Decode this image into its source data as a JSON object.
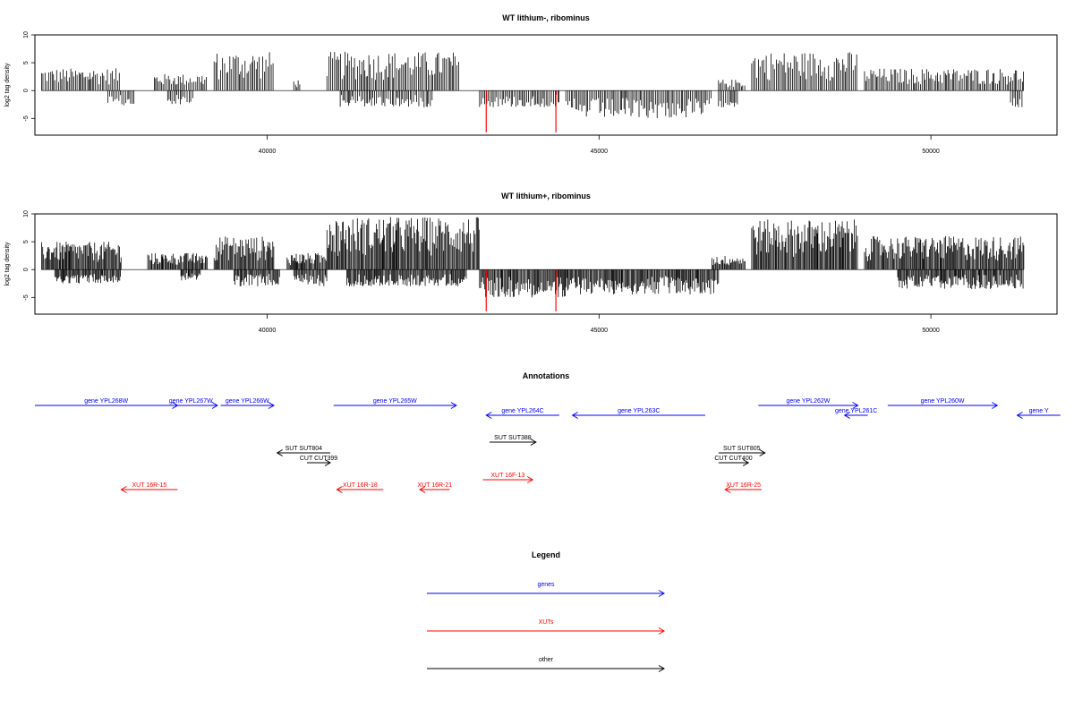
{
  "colors": {
    "gene": "#0000ff",
    "xut": "#ff0000",
    "other": "#000000",
    "frame": "#000000",
    "highlight": "#ff0000"
  },
  "chart_data": [
    {
      "type": "bar",
      "title": "WT lithium-, ribominus",
      "ylabel": "log2 tag density",
      "xlim": [
        36500,
        51900
      ],
      "ylim": [
        -8,
        10
      ],
      "xticks": [
        40000,
        45000,
        50000
      ],
      "yticks": [
        -5,
        0,
        5,
        10
      ],
      "density": 1,
      "segments": [
        {
          "x0": 36600,
          "x1": 37800,
          "ymax": 4,
          "sign": 1
        },
        {
          "x0": 37600,
          "x1": 38000,
          "ymax": 3,
          "sign": -1
        },
        {
          "x0": 38300,
          "x1": 39100,
          "ymax": 3,
          "sign": 1
        },
        {
          "x0": 38500,
          "x1": 38900,
          "ymax": 2.5,
          "sign": -1
        },
        {
          "x0": 39200,
          "x1": 40100,
          "ymax": 7,
          "sign": 1
        },
        {
          "x0": 40400,
          "x1": 40500,
          "ymax": 2,
          "sign": 1
        },
        {
          "x0": 40900,
          "x1": 42900,
          "ymax": 7,
          "sign": 1
        },
        {
          "x0": 41100,
          "x1": 42500,
          "ymax": 3,
          "sign": -1
        },
        {
          "x0": 43200,
          "x1": 44400,
          "ymax": 3,
          "sign": -1
        },
        {
          "x0": 44500,
          "x1": 46700,
          "ymax": 5,
          "sign": -1
        },
        {
          "x0": 46800,
          "x1": 47100,
          "ymax": 3,
          "sign": -1
        },
        {
          "x0": 46800,
          "x1": 47200,
          "ymax": 2,
          "sign": 1
        },
        {
          "x0": 47300,
          "x1": 48900,
          "ymax": 7,
          "sign": 1
        },
        {
          "x0": 49000,
          "x1": 51400,
          "ymax": 4,
          "sign": 1
        },
        {
          "x0": 51200,
          "x1": 51400,
          "ymax": 3,
          "sign": -1
        }
      ],
      "highlights": [
        {
          "x": 43300,
          "value": -7.5
        },
        {
          "x": 44350,
          "value": -7.5
        }
      ]
    },
    {
      "type": "bar",
      "title": "WT lithium+, ribominus",
      "ylabel": "log2 tag density",
      "xlim": [
        36500,
        51900
      ],
      "ylim": [
        -8,
        10
      ],
      "xticks": [
        40000,
        45000,
        50000
      ],
      "yticks": [
        -5,
        0,
        5,
        10
      ],
      "density": 2,
      "segments": [
        {
          "x0": 36600,
          "x1": 37800,
          "ymax": 5,
          "sign": 1
        },
        {
          "x0": 36800,
          "x1": 37800,
          "ymax": 2.5,
          "sign": -1
        },
        {
          "x0": 38200,
          "x1": 39100,
          "ymax": 3,
          "sign": 1
        },
        {
          "x0": 38700,
          "x1": 39000,
          "ymax": 2,
          "sign": -1
        },
        {
          "x0": 39200,
          "x1": 40100,
          "ymax": 6,
          "sign": 1
        },
        {
          "x0": 39500,
          "x1": 40200,
          "ymax": 3,
          "sign": -1
        },
        {
          "x0": 40300,
          "x1": 40900,
          "ymax": 3,
          "sign": 1
        },
        {
          "x0": 40400,
          "x1": 40900,
          "ymax": 3,
          "sign": -1
        },
        {
          "x0": 40900,
          "x1": 43200,
          "ymax": 9.5,
          "sign": 1
        },
        {
          "x0": 41200,
          "x1": 43000,
          "ymax": 3,
          "sign": -1
        },
        {
          "x0": 43200,
          "x1": 44500,
          "ymax": 5,
          "sign": -1
        },
        {
          "x0": 44500,
          "x1": 46800,
          "ymax": 4.5,
          "sign": -1
        },
        {
          "x0": 46700,
          "x1": 47200,
          "ymax": 2.5,
          "sign": 1
        },
        {
          "x0": 47300,
          "x1": 48900,
          "ymax": 9,
          "sign": 1
        },
        {
          "x0": 49000,
          "x1": 51400,
          "ymax": 6,
          "sign": 1
        },
        {
          "x0": 49500,
          "x1": 51400,
          "ymax": 3.5,
          "sign": -1
        }
      ],
      "highlights": [
        {
          "x": 43300,
          "value": -7.5
        },
        {
          "x": 44350,
          "value": -7.5
        }
      ]
    }
  ],
  "annotations": {
    "title": "Annotations",
    "xlim": [
      36500,
      51900
    ],
    "features": [
      {
        "label": "gene YPL268W",
        "type": "gene",
        "start": 36500,
        "end": 38650,
        "dir": "right",
        "row": 0
      },
      {
        "label": "gene YPL267W",
        "type": "gene",
        "start": 38450,
        "end": 39250,
        "dir": "right",
        "row": 0
      },
      {
        "label": "gene YPL266W",
        "type": "gene",
        "start": 39300,
        "end": 40100,
        "dir": "right",
        "row": 0
      },
      {
        "label": "gene YPL265W",
        "type": "gene",
        "start": 41000,
        "end": 42850,
        "dir": "right",
        "row": 0
      },
      {
        "label": "gene YPL264C",
        "type": "gene",
        "start": 43300,
        "end": 44400,
        "dir": "left",
        "row": 1
      },
      {
        "label": "gene YPL263C",
        "type": "gene",
        "start": 44600,
        "end": 46600,
        "dir": "left",
        "row": 1
      },
      {
        "label": "gene YPL262W",
        "type": "gene",
        "start": 47400,
        "end": 48900,
        "dir": "right",
        "row": 0
      },
      {
        "label": "gene YPL261C",
        "type": "gene",
        "start": 48700,
        "end": 49050,
        "dir": "left",
        "row": 1
      },
      {
        "label": "gene YPL260W",
        "type": "gene",
        "start": 49350,
        "end": 51000,
        "dir": "right",
        "row": 0
      },
      {
        "label": "gene Y",
        "type": "gene",
        "start": 51300,
        "end": 51950,
        "dir": "left",
        "row": 1
      },
      {
        "label": "SUT SUT804",
        "type": "other",
        "start": 40150,
        "end": 40950,
        "dir": "left",
        "row": 2
      },
      {
        "label": "CUT CUT399",
        "type": "other",
        "start": 40600,
        "end": 40950,
        "dir": "right",
        "row": 3
      },
      {
        "label": "SUT SUT388",
        "type": "other",
        "start": 43350,
        "end": 44050,
        "dir": "right",
        "row": 4
      },
      {
        "label": "SUT SUT805",
        "type": "other",
        "start": 46800,
        "end": 47500,
        "dir": "right",
        "row": 2
      },
      {
        "label": "CUT CUT400",
        "type": "other",
        "start": 46800,
        "end": 47250,
        "dir": "right",
        "row": 3
      },
      {
        "label": "XUT 16R-15",
        "type": "xut",
        "start": 37800,
        "end": 38650,
        "dir": "left",
        "row": 5
      },
      {
        "label": "XUT 16R-18",
        "type": "xut",
        "start": 41050,
        "end": 41750,
        "dir": "left",
        "row": 5
      },
      {
        "label": "XUT 16R-21",
        "type": "xut",
        "start": 42300,
        "end": 42750,
        "dir": "left",
        "row": 5
      },
      {
        "label": "XUT 16F-13",
        "type": "xut",
        "start": 43250,
        "end": 44000,
        "dir": "right",
        "row": 6
      },
      {
        "label": "XUT 16R-25",
        "type": "xut",
        "start": 46900,
        "end": 47450,
        "dir": "left",
        "row": 5
      }
    ]
  },
  "legend": {
    "title": "Legend",
    "items": [
      {
        "label": "genes",
        "type": "gene"
      },
      {
        "label": "XUTs",
        "type": "xut"
      },
      {
        "label": "other",
        "type": "other"
      }
    ]
  }
}
